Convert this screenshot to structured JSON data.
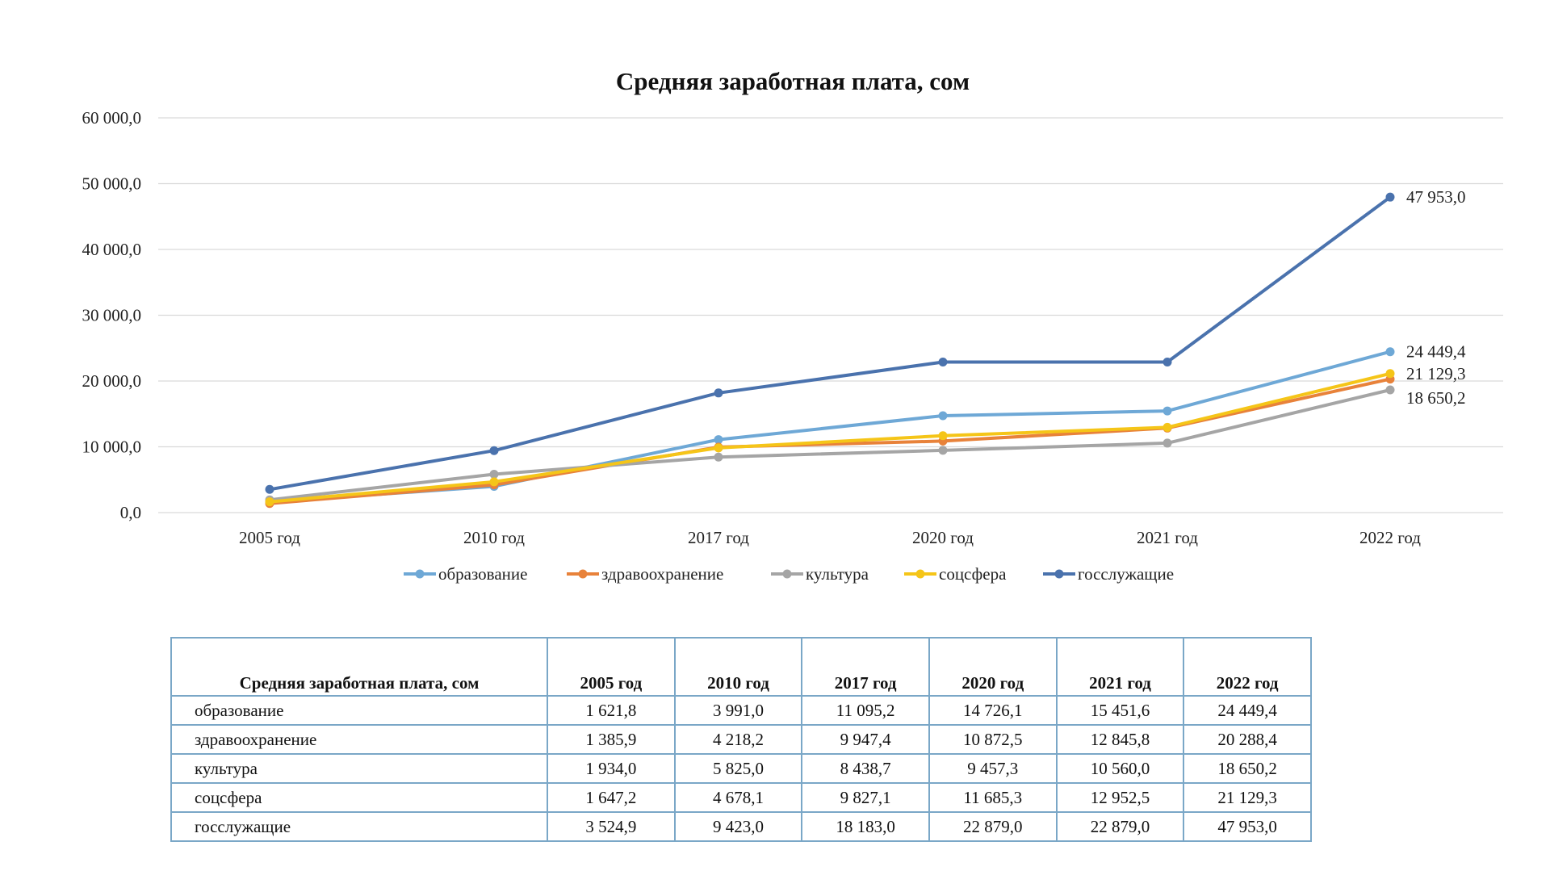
{
  "chart_data": {
    "type": "line",
    "title": "Средняя заработная плата, сом",
    "categories": [
      "2005 год",
      "2010 год",
      "2017 год",
      "2020 год",
      "2021 год",
      "2022 год"
    ],
    "y_tick_labels": [
      "0,0",
      "10 000,0",
      "20 000,0",
      "30 000,0",
      "40 000,0",
      "50 000,0",
      "60 000,0"
    ],
    "ylim": [
      0,
      60000
    ],
    "grid": true,
    "legend_position": "bottom",
    "series": [
      {
        "name": "образование",
        "color": "#6ea8d6",
        "values": [
          1621.8,
          3991.0,
          11095.2,
          14726.1,
          15451.6,
          24449.4
        ]
      },
      {
        "name": "здравоохранение",
        "color": "#e8823a",
        "values": [
          1385.9,
          4218.2,
          9947.4,
          10872.5,
          12845.8,
          20288.4
        ]
      },
      {
        "name": "культура",
        "color": "#a5a5a5",
        "values": [
          1934.0,
          5825.0,
          8438.7,
          9457.3,
          10560.0,
          18650.2
        ]
      },
      {
        "name": "соцсфера",
        "color": "#f5c518",
        "values": [
          1647.2,
          4678.1,
          9827.1,
          11685.3,
          12952.5,
          21129.3
        ]
      },
      {
        "name": "госслужащие",
        "color": "#4a72ad",
        "values": [
          3524.9,
          9423.0,
          18183.0,
          22879.0,
          22879.0,
          47953.0
        ]
      }
    ],
    "end_labels": [
      {
        "series": "госслужащие",
        "text": "47 953,0"
      },
      {
        "series": "образование",
        "text": "24 449,4"
      },
      {
        "series": "соцсфера",
        "text": "21 129,3"
      },
      {
        "series": "культура",
        "text": "18 650,2"
      }
    ]
  },
  "table": {
    "header": [
      "Средняя заработная плата, сом",
      "2005 год",
      "2010 год",
      "2017 год",
      "2020 год",
      "2021 год",
      "2022 год"
    ],
    "rows": [
      [
        "образование",
        "1 621,8",
        "3 991,0",
        "11 095,2",
        "14 726,1",
        "15 451,6",
        "24 449,4"
      ],
      [
        "здравоохранение",
        "1 385,9",
        "4 218,2",
        "9 947,4",
        "10 872,5",
        "12 845,8",
        "20 288,4"
      ],
      [
        "культура",
        "1 934,0",
        "5 825,0",
        "8 438,7",
        "9 457,3",
        "10 560,0",
        "18 650,2"
      ],
      [
        "соцсфера",
        "1 647,2",
        "4 678,1",
        "9 827,1",
        "11 685,3",
        "12 952,5",
        "21 129,3"
      ],
      [
        "госслужащие",
        "3 524,9",
        "9 423,0",
        "18 183,0",
        "22 879,0",
        "22 879,0",
        "47 953,0"
      ]
    ]
  }
}
